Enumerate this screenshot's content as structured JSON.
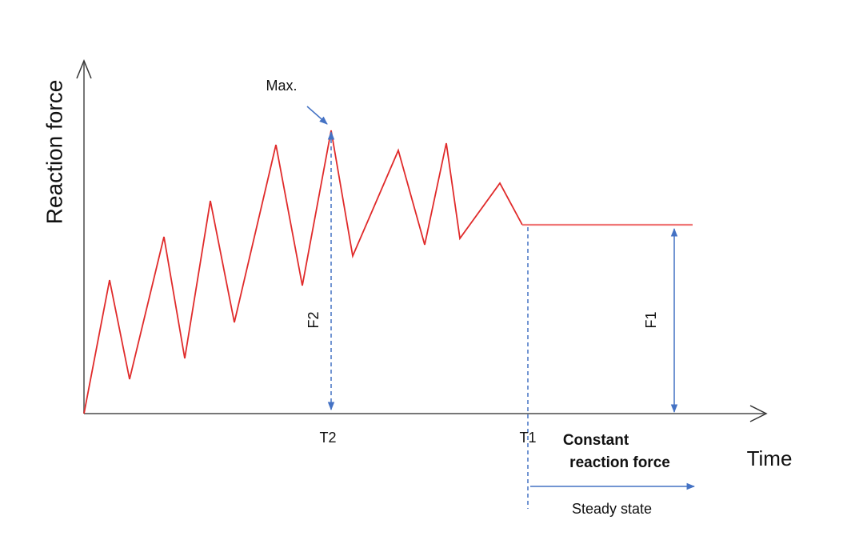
{
  "axes": {
    "y_label": "Reaction force",
    "x_label": "Time"
  },
  "annotations": {
    "max": "Max.",
    "f2": "F2",
    "f1": "F1",
    "t2": "T2",
    "t1": "T1",
    "constant": [
      "Constant",
      "reaction force"
    ],
    "steady": "Steady state"
  }
}
